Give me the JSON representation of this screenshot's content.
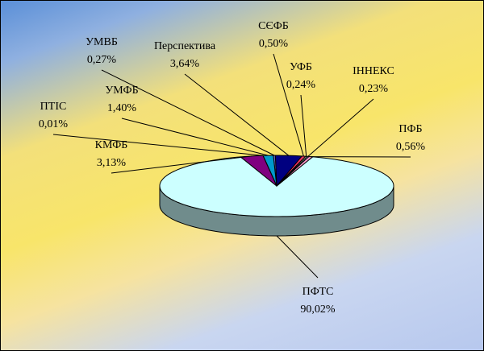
{
  "chart_data": {
    "type": "pie",
    "categories": [
      "ПФТС",
      "ПФБ",
      "ІННЕКС",
      "УФБ",
      "СЄФБ",
      "Перспектива",
      "УМВБ",
      "УМФБ",
      "ПТІС",
      "КМФБ"
    ],
    "values": [
      90.02,
      0.56,
      0.23,
      0.24,
      0.5,
      3.64,
      0.27,
      1.4,
      0.01,
      3.13
    ],
    "value_labels": [
      "90,02%",
      "0,56%",
      "0,23%",
      "0,24%",
      "0,50%",
      "3,64%",
      "0,27%",
      "1,40%",
      "0,01%",
      "3,13%"
    ],
    "colors": [
      "#ccffff",
      "#ff99cc",
      "#99ccff",
      "#ffcc99",
      "#ff3366",
      "#000080",
      "#6666cc",
      "#0099cc",
      "#339966",
      "#800080"
    ]
  }
}
